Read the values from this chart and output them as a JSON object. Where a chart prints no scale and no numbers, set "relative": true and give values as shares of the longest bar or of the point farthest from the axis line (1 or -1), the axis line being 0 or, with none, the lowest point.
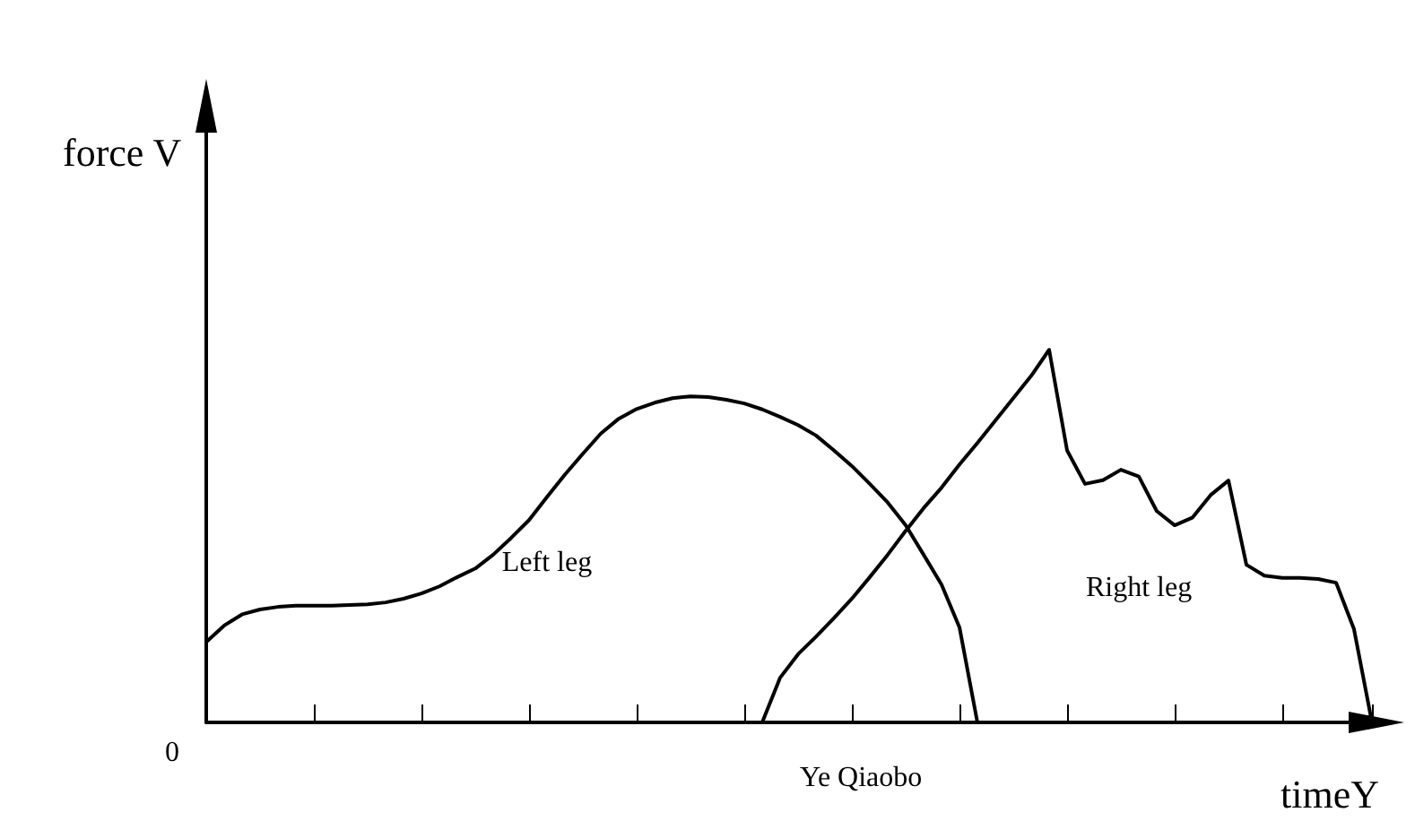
{
  "chart_data": {
    "type": "line",
    "relative": true,
    "xlabel": "timeY",
    "ylabel": "force V",
    "annotations": [
      "0",
      "Ye Qiaobo"
    ],
    "categories": [
      null,
      null,
      null,
      null,
      null,
      null,
      null,
      null,
      null,
      null,
      null,
      null,
      null,
      null,
      null,
      null,
      null,
      null,
      null,
      null,
      null,
      null,
      null,
      null,
      null,
      null,
      null,
      null,
      null,
      null,
      null,
      null,
      null,
      null,
      null,
      null,
      null,
      null,
      null,
      null,
      null,
      null,
      null,
      null,
      null,
      null,
      null,
      null,
      null,
      null,
      null,
      null,
      null,
      null,
      null,
      null,
      null,
      null,
      null,
      null,
      null,
      null,
      null,
      null,
      null,
      null
    ],
    "series": [
      {
        "name": "Left leg",
        "color": "#000000",
        "values": [
          0.216,
          0.26,
          0.29,
          0.303,
          0.31,
          0.313,
          0.313,
          0.313,
          0.315,
          0.317,
          0.322,
          0.332,
          0.346,
          0.365,
          0.39,
          0.413,
          0.45,
          0.495,
          0.543,
          0.605,
          0.665,
          0.721,
          0.775,
          0.815,
          0.841,
          0.858,
          0.87,
          0.875,
          0.873,
          0.866,
          0.856,
          0.84,
          0.82,
          0.798,
          0.77,
          0.73,
          0.688,
          0.64,
          0.59,
          0.529,
          0.45,
          0.37,
          0.255,
          0,
          null,
          null,
          null,
          null,
          null,
          null,
          null,
          null,
          null,
          null,
          null,
          null,
          null,
          null,
          null,
          null,
          null,
          null,
          null,
          null,
          null,
          null
        ]
      },
      {
        "name": "Right leg",
        "color": "#000000",
        "values": [
          null,
          null,
          null,
          null,
          null,
          null,
          null,
          null,
          null,
          null,
          null,
          null,
          null,
          null,
          null,
          null,
          null,
          null,
          null,
          null,
          null,
          null,
          null,
          null,
          null,
          null,
          null,
          null,
          null,
          null,
          null,
          0,
          0.12,
          0.183,
          0.23,
          0.28,
          0.332,
          0.39,
          0.45,
          0.514,
          0.575,
          0.63,
          0.692,
          0.75,
          0.81,
          0.87,
          0.93,
          1,
          0.73,
          0.64,
          0.65,
          0.678,
          0.66,
          0.567,
          0.529,
          0.55,
          0.61,
          0.649,
          0.423,
          0.394,
          0.388,
          0.388,
          0.385,
          0.375,
          0.25,
          0
        ]
      }
    ],
    "marker": "none",
    "grid": false,
    "legend": false
  }
}
